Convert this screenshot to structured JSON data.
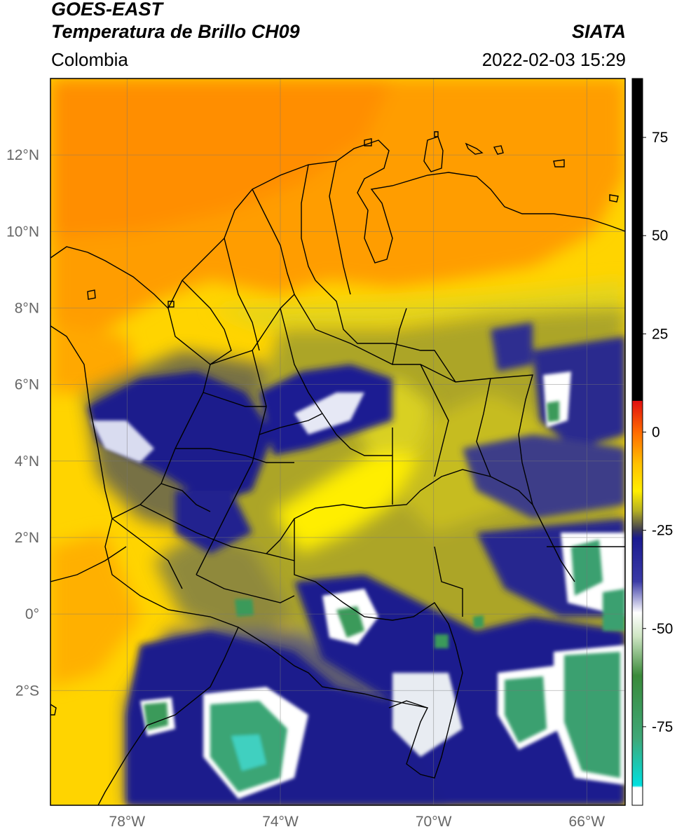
{
  "header": {
    "satellite": "GOES-EAST",
    "product": "Temperatura de Brillo CH09",
    "region": "Colombia",
    "source": "SIATA",
    "datetime": "2022-02-03 15:29"
  },
  "map": {
    "lon_range": [
      -80,
      -65
    ],
    "lat_range": [
      -5,
      14
    ],
    "lon_ticks": [
      {
        "value": -78,
        "label": "78°W"
      },
      {
        "value": -74,
        "label": "74°W"
      },
      {
        "value": -70,
        "label": "70°W"
      },
      {
        "value": -66,
        "label": "66°W"
      }
    ],
    "lat_ticks": [
      {
        "value": 12,
        "label": "12°N"
      },
      {
        "value": 10,
        "label": "10°N"
      },
      {
        "value": 8,
        "label": "8°N"
      },
      {
        "value": 6,
        "label": "6°N"
      },
      {
        "value": 4,
        "label": "4°N"
      },
      {
        "value": 2,
        "label": "2°N"
      },
      {
        "value": 0,
        "label": "0°"
      },
      {
        "value": -2,
        "label": "2°S"
      }
    ],
    "gridlines": true
  },
  "colorbar": {
    "range": [
      -95,
      90
    ],
    "ticks": [
      {
        "value": 75,
        "label": "75"
      },
      {
        "value": 50,
        "label": "50"
      },
      {
        "value": 25,
        "label": "25"
      },
      {
        "value": 0,
        "label": "0"
      },
      {
        "value": -25,
        "label": "-25"
      },
      {
        "value": -50,
        "label": "-50"
      },
      {
        "value": -75,
        "label": "-75"
      }
    ],
    "stops": [
      {
        "value": 90,
        "color": "#000000"
      },
      {
        "value": 8,
        "color": "#000000"
      },
      {
        "value": 7.9,
        "color": "#e01010"
      },
      {
        "value": 0,
        "color": "#ff6a00"
      },
      {
        "value": -8,
        "color": "#ffc000"
      },
      {
        "value": -15,
        "color": "#ffee00"
      },
      {
        "value": -20,
        "color": "#b5b021"
      },
      {
        "value": -25,
        "color": "#3c3a55"
      },
      {
        "value": -27,
        "color": "#1a1a90"
      },
      {
        "value": -38,
        "color": "#3a3aa6"
      },
      {
        "value": -46,
        "color": "#ffffff"
      },
      {
        "value": -52,
        "color": "#cfe6c4"
      },
      {
        "value": -62,
        "color": "#3a8a3a"
      },
      {
        "value": -78,
        "color": "#3fa878"
      },
      {
        "value": -90,
        "color": "#00e0e0"
      },
      {
        "value": -90.5,
        "color": "#ffffff"
      },
      {
        "value": -95,
        "color": "#ffffff"
      }
    ]
  },
  "colors": {
    "sea_warm": "#ff9e00",
    "land_warm": "#ffd800",
    "cloud_mid": "#9a9a2a",
    "cloud_cold": "#1b1b8f",
    "cloud_coldest": "#3fa878",
    "border": "#000000"
  }
}
